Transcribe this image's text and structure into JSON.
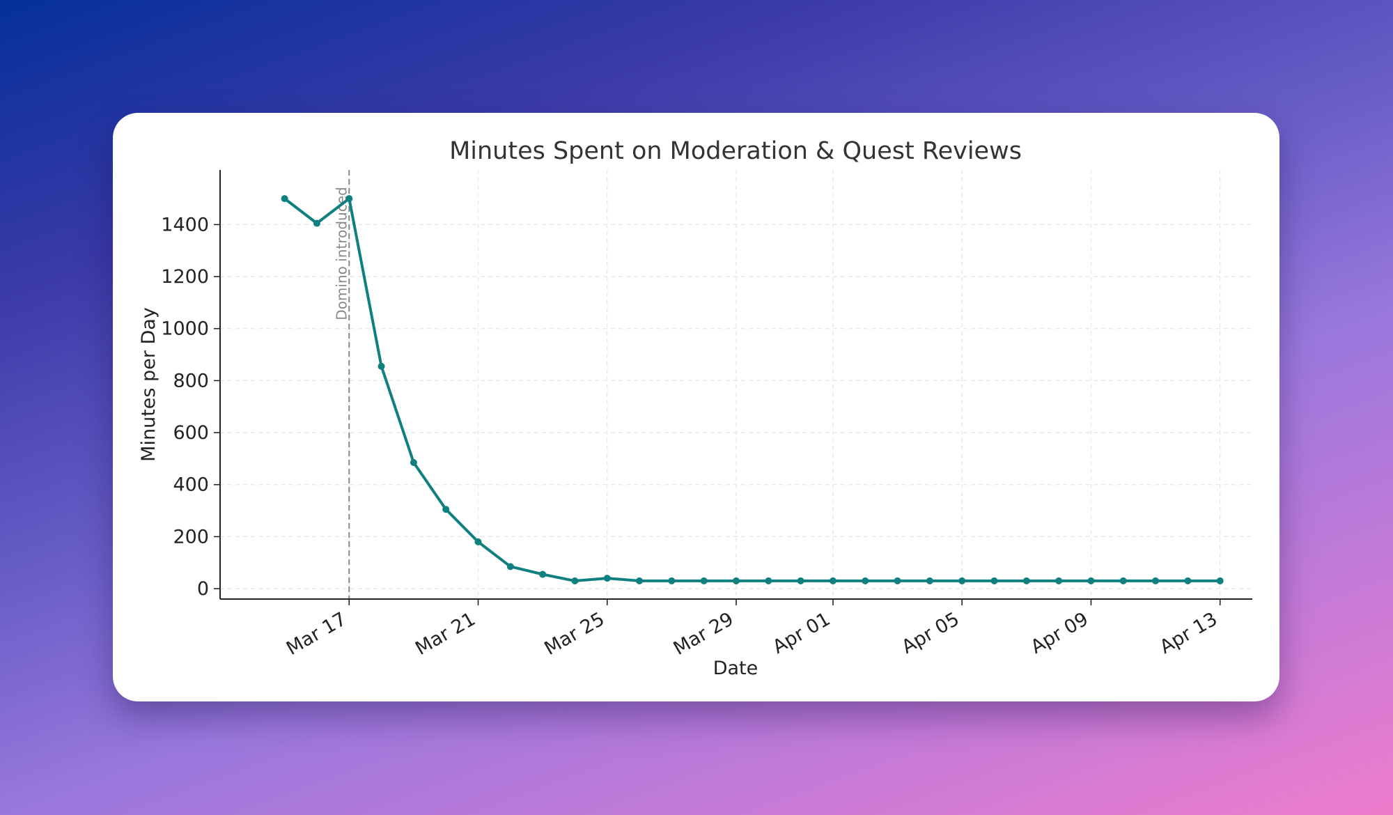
{
  "chart_data": {
    "type": "line",
    "title": "Minutes Spent on Moderation & Quest Reviews",
    "xlabel": "Date",
    "ylabel": "Minutes per Day",
    "x_type": "date",
    "xlim": [
      "2025-03-13",
      "2025-04-14"
    ],
    "ylim": [
      -40,
      1610
    ],
    "grid": true,
    "y_ticks": [
      0,
      200,
      400,
      600,
      800,
      1000,
      1200,
      1400
    ],
    "x_ticks": [
      {
        "date": "2025-03-17",
        "label": "Mar 17"
      },
      {
        "date": "2025-03-21",
        "label": "Mar 21"
      },
      {
        "date": "2025-03-25",
        "label": "Mar 25"
      },
      {
        "date": "2025-03-29",
        "label": "Mar 29"
      },
      {
        "date": "2025-04-01",
        "label": "Apr 01"
      },
      {
        "date": "2025-04-05",
        "label": "Apr 05"
      },
      {
        "date": "2025-04-09",
        "label": "Apr 09"
      },
      {
        "date": "2025-04-13",
        "label": "Apr 13"
      }
    ],
    "series": [
      {
        "color": "#0f7f7f",
        "x": [
          "2025-03-15",
          "2025-03-16",
          "2025-03-17",
          "2025-03-18",
          "2025-03-19",
          "2025-03-20",
          "2025-03-21",
          "2025-03-22",
          "2025-03-23",
          "2025-03-24",
          "2025-03-25",
          "2025-03-26",
          "2025-03-27",
          "2025-03-28",
          "2025-03-29",
          "2025-03-30",
          "2025-03-31",
          "2025-04-01",
          "2025-04-02",
          "2025-04-03",
          "2025-04-04",
          "2025-04-05",
          "2025-04-06",
          "2025-04-07",
          "2025-04-08",
          "2025-04-09",
          "2025-04-10",
          "2025-04-11",
          "2025-04-12",
          "2025-04-13"
        ],
        "values": [
          1500,
          1405,
          1500,
          855,
          485,
          305,
          180,
          85,
          55,
          30,
          40,
          30,
          30,
          30,
          30,
          30,
          30,
          30,
          30,
          30,
          30,
          30,
          30,
          30,
          30,
          30,
          30,
          30,
          30,
          30
        ]
      }
    ],
    "annotations": [
      {
        "date": "2025-03-17",
        "text": "Domino introduced",
        "style": "dashed vertical line",
        "color": "#888888"
      }
    ]
  }
}
